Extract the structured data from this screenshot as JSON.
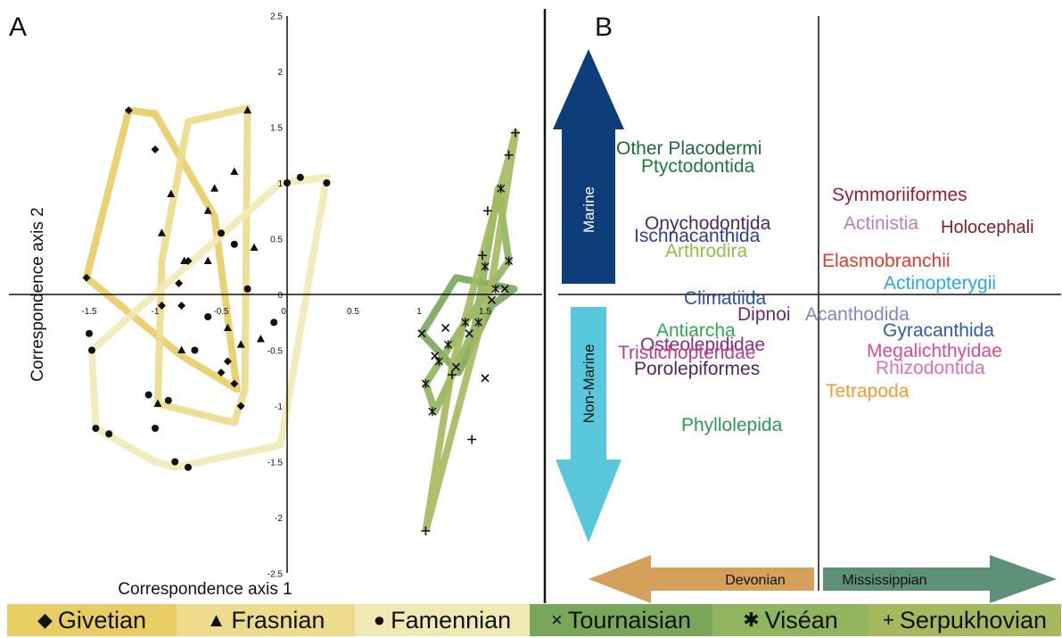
{
  "chart_data": [
    {
      "panel_label": "A",
      "type": "scatter",
      "xlabel": "Correspondence axis 1",
      "ylabel": "Correspondence axis 2",
      "x_ticks": [
        "-1.5",
        "-1",
        "-0.5",
        "0",
        "0.5",
        "1",
        "1.5"
      ],
      "y_ticks": [
        "2.5",
        "2",
        "1.5",
        "1",
        "0.5",
        "0",
        "-0.5",
        "-1",
        "-1.5",
        "-2",
        "-2.5"
      ],
      "xlim": [
        -1.8,
        1.85
      ],
      "ylim": [
        -2.5,
        2.5
      ],
      "series": [
        {
          "name": "Givetian",
          "symbol": "diamond",
          "color": "#e8cd63",
          "points": [
            [
              -1.52,
              0.15
            ],
            [
              -1.2,
              1.65
            ],
            [
              -1.0,
              1.3
            ],
            [
              -0.95,
              -0.1
            ],
            [
              -0.82,
              0.1
            ],
            [
              -0.8,
              -0.1
            ],
            [
              -0.75,
              0.3
            ],
            [
              -0.5,
              -0.7
            ],
            [
              -0.4,
              -0.8
            ],
            [
              -0.35,
              -1.0
            ],
            [
              -0.45,
              -0.6
            ]
          ],
          "hull": [
            [
              -1.52,
              0.15
            ],
            [
              -1.2,
              1.65
            ],
            [
              -1.0,
              1.62
            ],
            [
              -0.55,
              0.7
            ],
            [
              -0.38,
              -0.85
            ],
            [
              -0.8,
              -0.55
            ],
            [
              -1.52,
              0.15
            ]
          ]
        },
        {
          "name": "Frasnian",
          "symbol": "triangle",
          "color": "#ecdc8c",
          "points": [
            [
              -0.98,
              -0.98
            ],
            [
              -0.95,
              0.55
            ],
            [
              -0.88,
              0.9
            ],
            [
              -0.8,
              -0.5
            ],
            [
              -0.78,
              0.3
            ],
            [
              -0.6,
              0.3
            ],
            [
              -0.55,
              0.95
            ],
            [
              -0.45,
              -0.3
            ],
            [
              -0.4,
              1.1
            ],
            [
              -0.35,
              -0.45
            ],
            [
              -0.3,
              1.65
            ],
            [
              -0.25,
              0.42
            ],
            [
              -0.2,
              -0.4
            ],
            [
              -0.6,
              0.75
            ]
          ],
          "hull": [
            [
              -0.98,
              -0.98
            ],
            [
              -0.95,
              0.3
            ],
            [
              -0.75,
              1.55
            ],
            [
              -0.3,
              1.67
            ],
            [
              -0.32,
              -0.85
            ],
            [
              -0.4,
              -1.15
            ],
            [
              -0.98,
              -0.98
            ]
          ]
        },
        {
          "name": "Famennian",
          "symbol": "circle",
          "color": "#f1e9b4",
          "points": [
            [
              -1.5,
              -0.35
            ],
            [
              -1.48,
              -0.5
            ],
            [
              -1.45,
              -1.2
            ],
            [
              -1.35,
              -1.25
            ],
            [
              -1.05,
              -0.9
            ],
            [
              -1.0,
              -1.2
            ],
            [
              -0.9,
              -0.95
            ],
            [
              -0.85,
              -1.5
            ],
            [
              -0.75,
              -1.55
            ],
            [
              -0.7,
              -0.5
            ],
            [
              -0.5,
              0.55
            ],
            [
              -0.4,
              0.45
            ],
            [
              -0.3,
              0.05
            ],
            [
              -0.1,
              -0.25
            ],
            [
              0.0,
              1.0
            ],
            [
              0.1,
              1.05
            ],
            [
              0.3,
              1.0
            ],
            [
              -0.6,
              -0.2
            ]
          ],
          "hull": [
            [
              -1.48,
              -0.5
            ],
            [
              -1.45,
              -1.2
            ],
            [
              -1.0,
              -1.5
            ],
            [
              -0.85,
              -1.55
            ],
            [
              -0.05,
              -1.35
            ],
            [
              0.3,
              1.05
            ],
            [
              -0.05,
              1.0
            ],
            [
              -1.48,
              -0.5
            ]
          ]
        },
        {
          "name": "Tournaisian",
          "symbol": "cross",
          "color": "#7aa65a",
          "points": [
            [
              1.02,
              -0.35
            ],
            [
              1.12,
              -0.55
            ],
            [
              1.2,
              -0.3
            ],
            [
              1.28,
              -0.65
            ],
            [
              1.38,
              -0.35
            ],
            [
              1.5,
              -0.75
            ],
            [
              1.55,
              -0.05
            ],
            [
              1.65,
              0.05
            ]
          ],
          "hull": [
            [
              1.02,
              -0.35
            ],
            [
              1.28,
              0.15
            ],
            [
              1.72,
              0.05
            ],
            [
              1.55,
              -0.1
            ],
            [
              1.3,
              -0.7
            ],
            [
              1.02,
              -0.35
            ]
          ]
        },
        {
          "name": "Viséan",
          "symbol": "asterisk",
          "color": "#8fb55e",
          "points": [
            [
              1.05,
              -0.8
            ],
            [
              1.1,
              -1.05
            ],
            [
              1.15,
              -0.6
            ],
            [
              1.22,
              -0.45
            ],
            [
              1.35,
              -0.25
            ],
            [
              1.45,
              -0.25
            ],
            [
              1.5,
              0.25
            ],
            [
              1.58,
              0.05
            ],
            [
              1.62,
              0.95
            ],
            [
              1.68,
              0.3
            ]
          ],
          "hull": [
            [
              1.05,
              -0.8
            ],
            [
              1.12,
              -1.05
            ],
            [
              1.42,
              -0.3
            ],
            [
              1.6,
              0.95
            ],
            [
              1.68,
              0.3
            ],
            [
              1.35,
              -0.25
            ],
            [
              1.05,
              -0.8
            ]
          ]
        },
        {
          "name": "Serpukhovian",
          "symbol": "plus",
          "color": "#a5b85e",
          "points": [
            [
              1.05,
              -2.12
            ],
            [
              1.25,
              -0.72
            ],
            [
              1.4,
              -1.3
            ],
            [
              1.48,
              0.35
            ],
            [
              1.52,
              0.75
            ],
            [
              1.68,
              1.25
            ],
            [
              1.73,
              1.45
            ]
          ],
          "hull": [
            [
              1.05,
              -2.12
            ],
            [
              1.55,
              0.1
            ],
            [
              1.73,
              1.45
            ],
            [
              1.25,
              -0.65
            ],
            [
              1.05,
              -2.12
            ]
          ]
        }
      ]
    },
    {
      "panel_label": "B",
      "type": "scatter",
      "arrows": {
        "marine": "Marine",
        "non_marine": "Non-Marine",
        "devonian": "Devonian",
        "mississippian": "Mississippian"
      },
      "taxa": [
        {
          "name": "Other Placodermi",
          "color": "#1f6b3a"
        },
        {
          "name": "Ptyctodontida",
          "color": "#1f7a3a"
        },
        {
          "name": "Symmoriiformes",
          "color": "#a01c2c"
        },
        {
          "name": "Onychodontida",
          "color": "#4a2a5e"
        },
        {
          "name": "Actinistia",
          "color": "#c87ab8"
        },
        {
          "name": "Holocephali",
          "color": "#8a1c2a"
        },
        {
          "name": "Ischnacanthida",
          "color": "#2e3e9a"
        },
        {
          "name": "Arthrodira",
          "color": "#8bc34a"
        },
        {
          "name": "Elasmobranchii",
          "color": "#e53a2a"
        },
        {
          "name": "Actinopterygii",
          "color": "#2aa8e8"
        },
        {
          "name": "Climatiida",
          "color": "#2e4e9e"
        },
        {
          "name": "Dipnoi",
          "color": "#6a2a6e"
        },
        {
          "name": "Acanthodida",
          "color": "#7a88c8"
        },
        {
          "name": "Antiarcha",
          "color": "#2eaa4e"
        },
        {
          "name": "Gyracanthida",
          "color": "#2e5ab0"
        },
        {
          "name": "Osteolepididae",
          "color": "#8a2a8a"
        },
        {
          "name": "Tristichopteridae",
          "color": "#c03a8a"
        },
        {
          "name": "Megalichthyidae",
          "color": "#d84a9a"
        },
        {
          "name": "Porolepiformes",
          "color": "#4a2a5e"
        },
        {
          "name": "Rhizodontida",
          "color": "#e070b0"
        },
        {
          "name": "Tetrapoda",
          "color": "#f59a2a"
        },
        {
          "name": "Phyllolepida",
          "color": "#2e9a4e"
        }
      ]
    }
  ],
  "legend": [
    {
      "symbol": "◆",
      "label": "Givetian",
      "color": "#e8cd63"
    },
    {
      "symbol": "▲",
      "label": "Frasnian",
      "color": "#ecdc8c"
    },
    {
      "symbol": "●",
      "label": "Famennian",
      "color": "#f1e9b4"
    },
    {
      "symbol": "×",
      "label": "Tournaisian",
      "color": "#7aa65a"
    },
    {
      "symbol": "✱",
      "label": "Viséan",
      "color": "#8fb55e"
    },
    {
      "symbol": "+",
      "label": "Serpukhovian",
      "color": "#a5b85e"
    }
  ],
  "colors": {
    "marine_arrow": "#0e3e7a",
    "non_marine_arrow": "#5ac8dc",
    "devonian_arrow": "#d4a05a",
    "mississippian_arrow": "#5e9078"
  }
}
